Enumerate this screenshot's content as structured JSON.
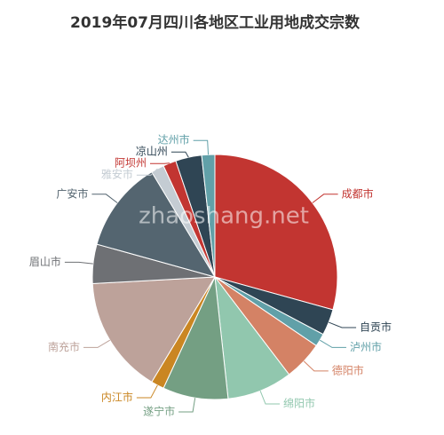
{
  "chart_data": {
    "type": "pie",
    "title": "2019年07月四川各地区工业用地成交宗数",
    "watermark": "zhaoshang.net",
    "categories": [
      "成都市",
      "自贡市",
      "泸州市",
      "德阳市",
      "绵阳市",
      "遂宁市",
      "内江市",
      "南充市",
      "眉山市",
      "广安市",
      "雅安市",
      "阿坝州",
      "凉山州",
      "达州市"
    ],
    "values": [
      17,
      2,
      1,
      3,
      5,
      5,
      1,
      9,
      3,
      7,
      1,
      1,
      2,
      1
    ],
    "colors": [
      "#c23531",
      "#2f4554",
      "#61a0a8",
      "#d48265",
      "#91c7ae",
      "#749f83",
      "#ca8622",
      "#bda29a",
      "#6e7074",
      "#546570",
      "#c4ccd3",
      "#c23531",
      "#2f4554",
      "#61a0a8"
    ]
  }
}
